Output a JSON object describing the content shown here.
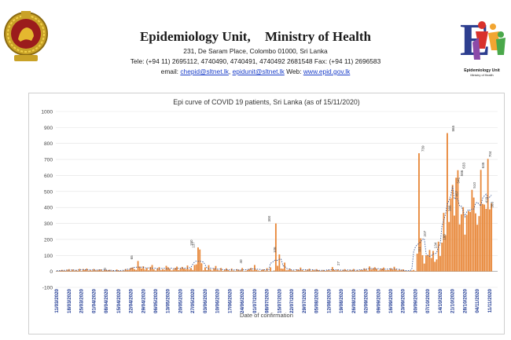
{
  "header": {
    "unit": "Epidemiology Unit,",
    "ministry": "Ministry of Health",
    "address": "231, De Saram Place, Colombo 01000, Sri Lanka",
    "phones": "Tele: (+94 11) 2695112, 4740490, 4740491, 4740492 2681548  Fax: (+94 11) 2696583",
    "email_label": "email: ",
    "email1": "chepid@sltnet.lk",
    "email_sep": ", ",
    "email2": "epidunit@sltnet.lk",
    "web_label": " Web: ",
    "web": "www.epid.gov.lk",
    "logo_caption": "Epidemiology Unit",
    "logo_sub": "Ministry of Health"
  },
  "chart_data": {
    "type": "bar",
    "title": "Epi curve of COVID 19 patients, Sri Lanka  (as of 15/11/2020)",
    "xlabel": "Date of confirmation",
    "ylabel": "",
    "ylim": [
      -100,
      1000
    ],
    "yticks": [
      -100,
      0,
      100,
      200,
      300,
      400,
      500,
      600,
      700,
      800,
      900,
      1000
    ],
    "x_tick_labels": [
      "11/03/2020",
      "18/03/2020",
      "25/03/2020",
      "01/04/2020",
      "08/04/2020",
      "15/04/2020",
      "22/04/2020",
      "29/04/2020",
      "06/05/2020",
      "13/05/2020",
      "20/05/2020",
      "27/05/2020",
      "03/06/2020",
      "10/06/2020",
      "17/06/2020",
      "24/06/2020",
      "01/07/2020",
      "08/07/2020",
      "15/07/2020",
      "22/07/2020",
      "29/07/2020",
      "05/08/2020",
      "12/08/2020",
      "19/08/2020",
      "26/08/2020",
      "02/09/2020",
      "09/09/2020",
      "16/09/2020",
      "23/09/2020",
      "30/09/2020",
      "07/10/2020",
      "14/10/2020",
      "21/10/2020",
      "28/10/2020",
      "04/11/2020",
      "11/11/2020"
    ],
    "x_start": "11/03/2020",
    "x_end": "15/11/2020",
    "grid": true,
    "bar_color": "#e8883a",
    "trend_color": "#2f4e8f",
    "data_labels": [
      {
        "date": "08/04/2020",
        "value": 0
      },
      {
        "date": "23/04/2020",
        "value": 65
      },
      {
        "date": "27/05/2020",
        "value": 150
      },
      {
        "date": "28/05/2020",
        "value": 137
      },
      {
        "date": "24/06/2020",
        "value": 40
      },
      {
        "date": "10/07/2020",
        "value": 300
      },
      {
        "date": "13/07/2020",
        "value": 106
      },
      {
        "date": "18/08/2020",
        "value": 27
      },
      {
        "date": "03/10/2020",
        "value": 111
      },
      {
        "date": "05/10/2020",
        "value": 739
      },
      {
        "date": "06/10/2020",
        "value": 207
      },
      {
        "date": "12/10/2020",
        "value": 134
      },
      {
        "date": "17/10/2020",
        "value": 186
      },
      {
        "date": "20/10/2020",
        "value": 366
      },
      {
        "date": "22/10/2020",
        "value": 865
      },
      {
        "date": "24/10/2020",
        "value": 457
      },
      {
        "date": "25/10/2020",
        "value": 541
      },
      {
        "date": "27/10/2020",
        "value": 586
      },
      {
        "date": "28/10/2020",
        "value": 633
      },
      {
        "date": "03/11/2020",
        "value": 510
      },
      {
        "date": "08/11/2020",
        "value": 635
      },
      {
        "date": "10/11/2020",
        "value": 418
      },
      {
        "date": "12/11/2020",
        "value": 704
      },
      {
        "date": "13/11/2020",
        "value": 388
      }
    ],
    "values": [
      2,
      1,
      6,
      10,
      5,
      4,
      11,
      14,
      3,
      12,
      5,
      9,
      4,
      16,
      2,
      15,
      9,
      18,
      5,
      8,
      4,
      15,
      7,
      6,
      12,
      13,
      3,
      9,
      11,
      7,
      10,
      2,
      8,
      0,
      12,
      5,
      3,
      2,
      6,
      15,
      8,
      11,
      23,
      25,
      14,
      9,
      65,
      30,
      18,
      32,
      12,
      21,
      7,
      28,
      40,
      13,
      5,
      19,
      27,
      8,
      14,
      10,
      35,
      26,
      16,
      6,
      11,
      22,
      30,
      8,
      17,
      28,
      18,
      14,
      37,
      12,
      21,
      9,
      40,
      44,
      150,
      137,
      51,
      7,
      25,
      8,
      39,
      13,
      5,
      19,
      34,
      10,
      6,
      21,
      3,
      8,
      19,
      9,
      3,
      18,
      5,
      2,
      14,
      11,
      6,
      21,
      1,
      4,
      9,
      15,
      22,
      7,
      40,
      11,
      6,
      3,
      9,
      13,
      5,
      20,
      2,
      25,
      0,
      6,
      300,
      35,
      106,
      18,
      16,
      55,
      7,
      10,
      17,
      6,
      5,
      3,
      12,
      8,
      24,
      9,
      3,
      6,
      12,
      17,
      4,
      10,
      6,
      14,
      8,
      2,
      5,
      9,
      3,
      7,
      11,
      4,
      27,
      8,
      6,
      12,
      5,
      3,
      9,
      14,
      7,
      4,
      11,
      6,
      15,
      2,
      8,
      5,
      10,
      8,
      19,
      14,
      5,
      31,
      12,
      20,
      26,
      16,
      5,
      11,
      18,
      24,
      7,
      9,
      9,
      20,
      12,
      29,
      15,
      6,
      11,
      8,
      13,
      4,
      2,
      1,
      3,
      5,
      9,
      2,
      111,
      739,
      207,
      101,
      49,
      101,
      102,
      134,
      84,
      128,
      60,
      75,
      186,
      96,
      180,
      366,
      226,
      865,
      309,
      457,
      541,
      349,
      586,
      633,
      294,
      357,
      402,
      230,
      353,
      378,
      372,
      510,
      462,
      363,
      292,
      346,
      635,
      422,
      418,
      391,
      704,
      388,
      425
    ]
  }
}
